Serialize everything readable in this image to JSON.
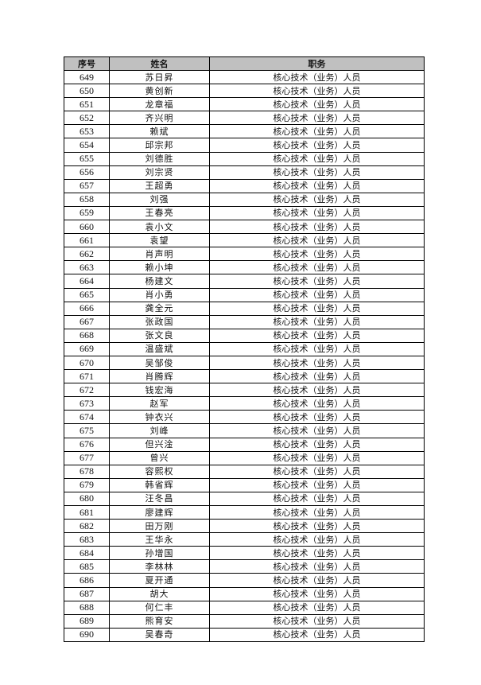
{
  "table": {
    "headers": [
      "序号",
      "姓名",
      "职务"
    ],
    "rows": [
      [
        "649",
        "苏日昇",
        "核心技术（业务）人员"
      ],
      [
        "650",
        "黄创新",
        "核心技术（业务）人员"
      ],
      [
        "651",
        "龙章福",
        "核心技术（业务）人员"
      ],
      [
        "652",
        "齐兴明",
        "核心技术（业务）人员"
      ],
      [
        "653",
        "赖斌",
        "核心技术（业务）人员"
      ],
      [
        "654",
        "邱宗邦",
        "核心技术（业务）人员"
      ],
      [
        "655",
        "刘德胜",
        "核心技术（业务）人员"
      ],
      [
        "656",
        "刘宗贤",
        "核心技术（业务）人员"
      ],
      [
        "657",
        "王超勇",
        "核心技术（业务）人员"
      ],
      [
        "658",
        "刘强",
        "核心技术（业务）人员"
      ],
      [
        "659",
        "王春亮",
        "核心技术（业务）人员"
      ],
      [
        "660",
        "袁小文",
        "核心技术（业务）人员"
      ],
      [
        "661",
        "袁望",
        "核心技术（业务）人员"
      ],
      [
        "662",
        "肖声明",
        "核心技术（业务）人员"
      ],
      [
        "663",
        "赖小坤",
        "核心技术（业务）人员"
      ],
      [
        "664",
        "杨建文",
        "核心技术（业务）人员"
      ],
      [
        "665",
        "肖小勇",
        "核心技术（业务）人员"
      ],
      [
        "666",
        "龚全元",
        "核心技术（业务）人员"
      ],
      [
        "667",
        "张政国",
        "核心技术（业务）人员"
      ],
      [
        "668",
        "张文良",
        "核心技术（业务）人员"
      ],
      [
        "669",
        "温盛斌",
        "核心技术（业务）人员"
      ],
      [
        "670",
        "吴邹俊",
        "核心技术（业务）人员"
      ],
      [
        "671",
        "肖腾辉",
        "核心技术（业务）人员"
      ],
      [
        "672",
        "钱宏海",
        "核心技术（业务）人员"
      ],
      [
        "673",
        "赵军",
        "核心技术（业务）人员"
      ],
      [
        "674",
        "钟衣兴",
        "核心技术（业务）人员"
      ],
      [
        "675",
        "刘峰",
        "核心技术（业务）人员"
      ],
      [
        "676",
        "但兴淦",
        "核心技术（业务）人员"
      ],
      [
        "677",
        "曾兴",
        "核心技术（业务）人员"
      ],
      [
        "678",
        "容熙权",
        "核心技术（业务）人员"
      ],
      [
        "679",
        "韩省辉",
        "核心技术（业务）人员"
      ],
      [
        "680",
        "汪冬昌",
        "核心技术（业务）人员"
      ],
      [
        "681",
        "廖建辉",
        "核心技术（业务）人员"
      ],
      [
        "682",
        "田万刚",
        "核心技术（业务）人员"
      ],
      [
        "683",
        "王华永",
        "核心技术（业务）人员"
      ],
      [
        "684",
        "孙增国",
        "核心技术（业务）人员"
      ],
      [
        "685",
        "李林林",
        "核心技术（业务）人员"
      ],
      [
        "686",
        "夏开通",
        "核心技术（业务）人员"
      ],
      [
        "687",
        "胡大",
        "核心技术（业务）人员"
      ],
      [
        "688",
        "何仁丰",
        "核心技术（业务）人员"
      ],
      [
        "689",
        "熊育安",
        "核心技术（业务）人员"
      ],
      [
        "690",
        "吴春奇",
        "核心技术（业务）人员"
      ]
    ]
  },
  "colors": {
    "header_bg": "#c0c0c0",
    "border": "#000000"
  }
}
